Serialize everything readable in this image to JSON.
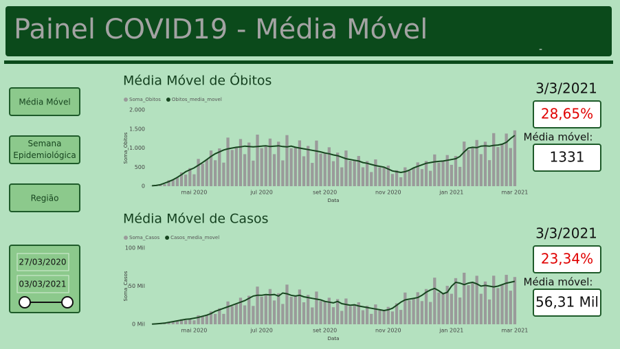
{
  "header": {
    "title": "Painel COVID19 - Média Móvel",
    "dash": "-"
  },
  "nav": {
    "buttons": [
      "Média Móvel",
      "Semana Epidemiológica",
      "Região"
    ]
  },
  "date_filter": {
    "start": "27/03/2020",
    "end": "03/03/2021"
  },
  "kpis": [
    {
      "date": "3/3/2021",
      "change": "28,65%",
      "label": "Média móvel:",
      "value": "1331"
    },
    {
      "date": "3/3/2021",
      "change": "23,34%",
      "label": "Média móvel:",
      "value": "56,31 Mil"
    }
  ],
  "chart_data": [
    {
      "type": "combo",
      "title": "Média Móvel de Óbitos",
      "x_label": "Data",
      "y_label": "Soma_Obitos",
      "categories": [
        null,
        null,
        null,
        null,
        null,
        null,
        null,
        null,
        null,
        null,
        "mai 2020",
        null,
        null,
        null,
        null,
        null,
        null,
        null,
        null,
        null,
        null,
        null,
        null,
        null,
        null,
        null,
        "jul 2020",
        null,
        null,
        null,
        null,
        null,
        null,
        null,
        null,
        null,
        null,
        null,
        null,
        null,
        null,
        "set 2020",
        null,
        null,
        null,
        null,
        null,
        null,
        null,
        null,
        null,
        null,
        null,
        null,
        null,
        null,
        "nov 2020",
        null,
        null,
        null,
        null,
        null,
        null,
        null,
        null,
        null,
        null,
        null,
        null,
        null,
        null,
        "jan 2021",
        null,
        null,
        null,
        null,
        null,
        null,
        null,
        null,
        null,
        null,
        null,
        null,
        null,
        null,
        "mar 2021"
      ],
      "series": [
        {
          "name": "Soma_Obitos",
          "type": "bar",
          "color": "#9a9a9a",
          "values": [
            12,
            16,
            44,
            52,
            156,
            162,
            230,
            360,
            304,
            473,
            312,
            715,
            589,
            700,
            936,
            680,
            990,
            618,
            1274,
            950,
            1020,
            1236,
            840,
            1144,
            670,
            1352,
            998,
            1060,
            1248,
            840,
            1166,
            676,
            1339,
            998,
            1020,
            1200,
            784,
            1056,
            611,
            1196,
            855,
            870,
            1020,
            656,
            880,
            494,
            936,
            665,
            680,
            792,
            496,
            660,
            371,
            702,
            494,
            500,
            540,
            320,
            418,
            234,
            494,
            399,
            480,
            624,
            448,
            660,
            403,
            832,
            618,
            660,
            816,
            560,
            792,
            507,
            1170,
            950,
            1020,
            1212,
            840,
            1166,
            683,
            1391,
            1026,
            1100,
            1380,
            1000,
            1464
          ]
        },
        {
          "name": "Obitos_media_movel",
          "type": "line",
          "color": "#17451f",
          "values": [
            10,
            20,
            40,
            80,
            120,
            170,
            230,
            300,
            380,
            430,
            480,
            550,
            620,
            700,
            780,
            850,
            900,
            950,
            980,
            1000,
            1020,
            1030,
            1050,
            1040,
            1030,
            1040,
            1050,
            1060,
            1040,
            1050,
            1060,
            1040,
            1030,
            1050,
            1020,
            1000,
            980,
            960,
            940,
            920,
            900,
            870,
            850,
            820,
            800,
            760,
            720,
            700,
            680,
            660,
            620,
            600,
            570,
            540,
            520,
            500,
            450,
            400,
            380,
            360,
            380,
            420,
            480,
            520,
            560,
            600,
            620,
            640,
            650,
            660,
            680,
            700,
            720,
            780,
            900,
            1000,
            1020,
            1010,
            1050,
            1060,
            1050,
            1070,
            1080,
            1100,
            1150,
            1250,
            1331
          ]
        }
      ],
      "ylim": [
        0,
        2000
      ],
      "yticks": [
        0,
        500,
        {
          "value": 1000,
          "label": "1.000"
        },
        {
          "value": 1500,
          "label": "1.500"
        },
        {
          "value": 2000,
          "label": "2.000"
        }
      ]
    },
    {
      "type": "combo",
      "title": "Média Móvel de Casos",
      "x_label": "Data",
      "y_label": "Soma_Casos",
      "categories": [
        null,
        null,
        null,
        null,
        null,
        null,
        null,
        null,
        null,
        null,
        "mai 2020",
        null,
        null,
        null,
        null,
        null,
        null,
        null,
        null,
        null,
        null,
        null,
        null,
        null,
        null,
        null,
        "jul 2020",
        null,
        null,
        null,
        null,
        null,
        null,
        null,
        null,
        null,
        null,
        null,
        null,
        null,
        null,
        "set 2020",
        null,
        null,
        null,
        null,
        null,
        null,
        null,
        null,
        null,
        null,
        null,
        null,
        null,
        null,
        "nov 2020",
        null,
        null,
        null,
        null,
        null,
        null,
        null,
        null,
        null,
        null,
        null,
        null,
        null,
        null,
        "jan 2021",
        null,
        null,
        null,
        null,
        null,
        null,
        null,
        null,
        null,
        null,
        null,
        null,
        null,
        null,
        "mar 2021"
      ],
      "series": [
        {
          "name": "Soma_Casos",
          "type": "bar",
          "color": "#9a9a9a",
          "values": [
            240,
            400,
            1100,
            975,
            3250,
            3325,
            4500,
            6600,
            5200,
            7700,
            5200,
            11700,
            9975,
            12000,
            16800,
            13600,
            20900,
            13650,
            29900,
            23750,
            27000,
            34800,
            24800,
            37400,
            24050,
            49400,
            36100,
            39000,
            46200,
            31200,
            40700,
            26650,
            52000,
            36100,
            37000,
            45600,
            28800,
            38500,
            22100,
            42900,
            30400,
            30000,
            34800,
            22400,
            33000,
            17550,
            33800,
            23750,
            25500,
            28800,
            18400,
            24200,
            13650,
            26000,
            18050,
            18000,
            22800,
            16800,
            27500,
            18850,
            41600,
            31350,
            34000,
            42000,
            30400,
            46200,
            29250,
            61100,
            41800,
            40000,
            50400,
            40000,
            60500,
            35100,
            67600,
            51300,
            55000,
            63600,
            40000,
            56100,
            32500,
            63700,
            47500,
            52000,
            64800,
            44000,
            61941
          ]
        },
        {
          "name": "Casos_media_movel",
          "type": "line",
          "color": "#17451f",
          "values": [
            200,
            500,
            1000,
            1500,
            2500,
            3500,
            4500,
            5500,
            6500,
            7000,
            8000,
            9000,
            10500,
            12000,
            14000,
            17000,
            19000,
            21000,
            23000,
            25000,
            27000,
            29000,
            31000,
            34000,
            37000,
            38000,
            38000,
            39000,
            38500,
            39000,
            37000,
            41000,
            40000,
            38000,
            37000,
            38000,
            36000,
            35000,
            34000,
            33000,
            32000,
            30000,
            29000,
            28000,
            30000,
            27000,
            26000,
            25000,
            25500,
            24000,
            23000,
            22000,
            21000,
            20000,
            19000,
            18000,
            19000,
            21000,
            25000,
            29000,
            32000,
            33000,
            34000,
            35000,
            38000,
            42000,
            45000,
            47000,
            44000,
            40000,
            42000,
            50000,
            55000,
            54000,
            52000,
            54000,
            55000,
            53000,
            50000,
            51000,
            50000,
            49000,
            50000,
            52000,
            54000,
            55000,
            56310
          ]
        }
      ],
      "ylim": [
        0,
        100000
      ],
      "yticks": [
        {
          "value": 0,
          "label": "0 Mil"
        },
        {
          "value": 50000,
          "label": "50 Mil"
        },
        {
          "value": 100000,
          "label": "100 Mil"
        }
      ]
    }
  ]
}
